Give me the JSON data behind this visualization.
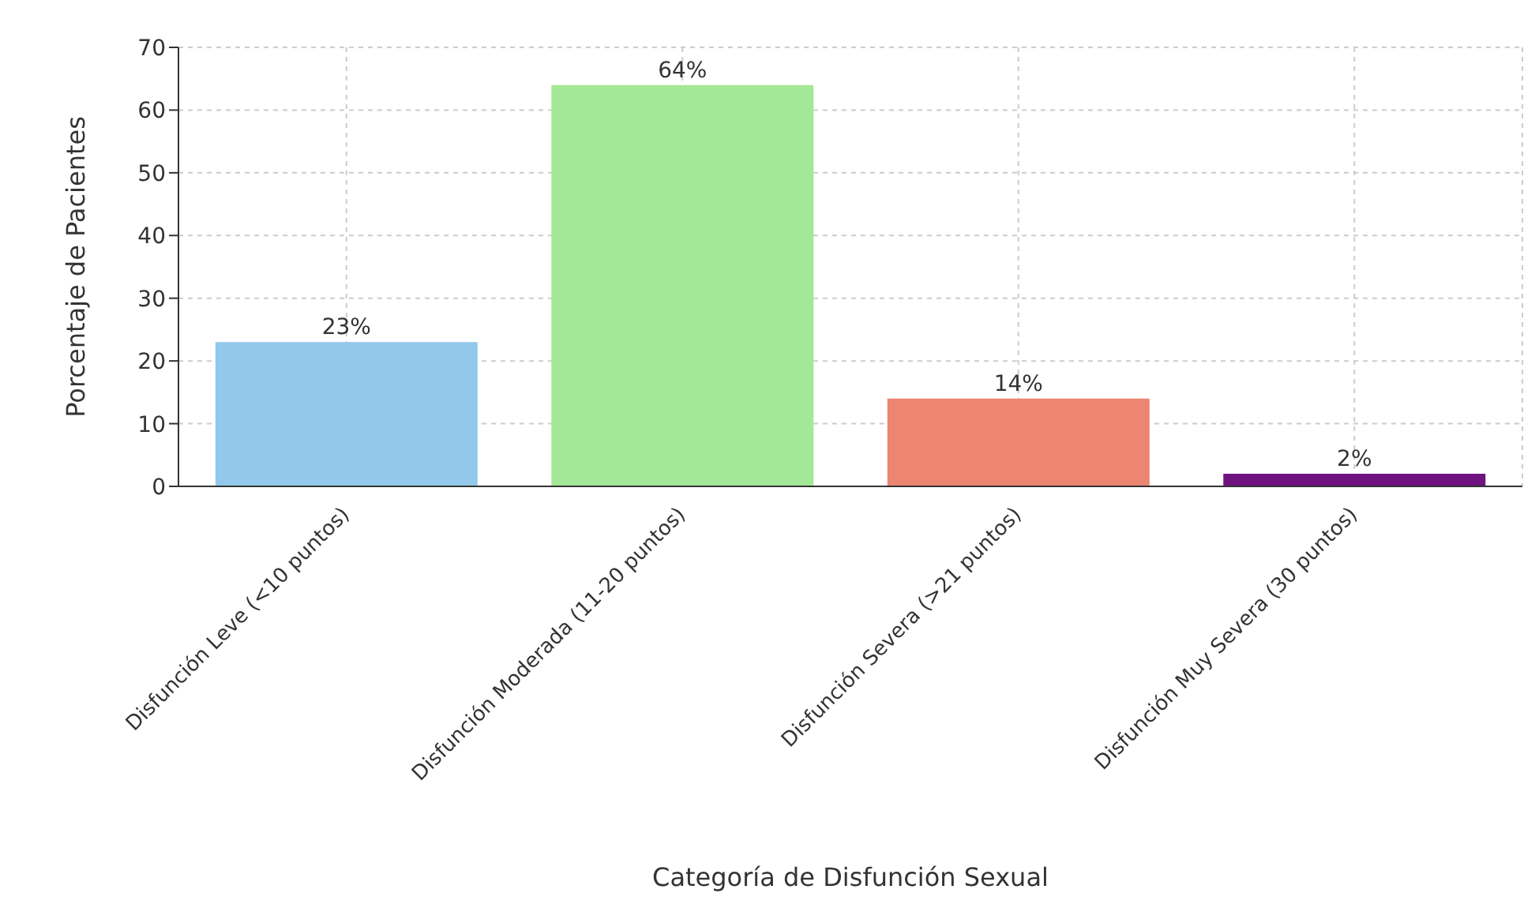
{
  "chart_data": {
    "type": "bar",
    "xlabel": "Categoría de Disfunción Sexual",
    "ylabel": "Porcentaje de Pacientes",
    "categories": [
      "Disfunción Leve (<10 puntos)",
      "Disfunción Moderada (11-20 puntos)",
      "Disfunción Severa (>21 puntos)",
      "Disfunción Muy Severa (30 puntos)"
    ],
    "values": [
      23,
      64,
      14,
      2
    ],
    "colors": [
      "#92c9ea",
      "#a3e896",
      "#ec8572",
      "#6e1380"
    ],
    "value_labels": [
      "23%",
      "64%",
      "14%",
      "2%"
    ],
    "ylim": [
      0,
      70
    ],
    "yticks": [
      0,
      10,
      20,
      30,
      40,
      50,
      60,
      70
    ],
    "grid": true
  }
}
